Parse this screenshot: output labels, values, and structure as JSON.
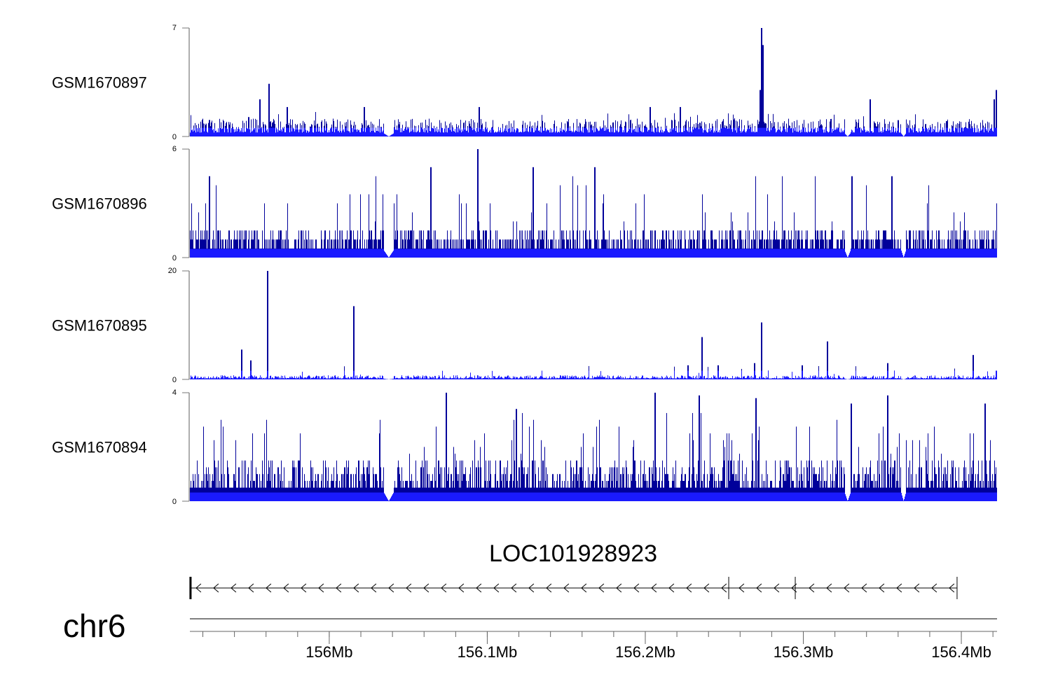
{
  "chart_data": {
    "type": "area",
    "xlim": [
      155.9118,
      156.4226
    ],
    "x_unit": "Mb",
    "chromosome": "chr6",
    "gene": {
      "name": "LOC101928923",
      "start": 155.9122,
      "end": 156.3973,
      "strand": "-",
      "exon_marks": [
        155.9122,
        156.2528,
        156.2949,
        156.3973
      ]
    },
    "axis": {
      "major_ticks": [
        156.0,
        156.1,
        156.2,
        156.3,
        156.4
      ],
      "tick_labels": [
        "156Mb",
        "156.1Mb",
        "156.2Mb",
        "156.3Mb",
        "156.4Mb"
      ],
      "minor_step": 0.02
    },
    "low_coverage_regions": [
      [
        156.0346,
        156.0408
      ],
      [
        156.3262,
        156.33
      ],
      [
        156.362,
        156.365
      ]
    ],
    "tracks": [
      {
        "name": "GSM1670897",
        "ylim": [
          0,
          7
        ],
        "ytick_labels": [
          "7",
          "0"
        ],
        "seed": 11,
        "base": 0.25,
        "noise": 0.9,
        "spike_rate": 0.05,
        "spike_max": 1.6,
        "peaks": [
          [
            156.2733,
            7.0
          ],
          [
            156.2742,
            5.9
          ],
          [
            156.2726,
            3.0
          ],
          [
            155.9558,
            2.4
          ],
          [
            155.9615,
            3.4
          ],
          [
            155.973,
            1.9
          ],
          [
            156.0947,
            1.9
          ],
          [
            156.3422,
            2.4
          ],
          [
            156.4221,
            3.0
          ],
          [
            156.4208,
            2.4
          ],
          [
            156.222,
            1.9
          ],
          [
            156.203,
            1.9
          ],
          [
            156.0218,
            1.9
          ]
        ]
      },
      {
        "name": "GSM1670896",
        "ylim": [
          0,
          6
        ],
        "ytick_labels": [
          "6",
          "0"
        ],
        "seed": 23,
        "base": 0.5,
        "noise": 1.2,
        "spike_rate": 0.1,
        "spike_max": 4.5,
        "quantum": 0.5,
        "peaks": [
          [
            156.0937,
            6.0
          ],
          [
            155.9032,
            5.0
          ],
          [
            155.924,
            4.5
          ],
          [
            156.064,
            5.0
          ],
          [
            156.129,
            5.0
          ],
          [
            156.168,
            5.0
          ],
          [
            156.3307,
            4.5
          ],
          [
            156.356,
            4.5
          ]
        ]
      },
      {
        "name": "GSM1670895",
        "ylim": [
          0,
          20
        ],
        "ytick_labels": [
          "20",
          "0"
        ],
        "seed": 37,
        "base": 0.15,
        "noise": 0.6,
        "spike_rate": 0.03,
        "spike_max": 2.5,
        "peaks": [
          [
            155.9608,
            20.0
          ],
          [
            156.0155,
            13.5
          ],
          [
            155.9443,
            5.5
          ],
          [
            155.9501,
            3.5
          ],
          [
            156.2359,
            7.8
          ],
          [
            156.2733,
            10.5
          ],
          [
            156.315,
            7.0
          ],
          [
            156.4071,
            4.5
          ],
          [
            156.3532,
            3.0
          ],
          [
            156.269,
            3.0
          ],
          [
            156.2461,
            2.6
          ],
          [
            156.227,
            2.6
          ],
          [
            156.299,
            2.6
          ],
          [
            156.4221,
            1.6
          ]
        ]
      },
      {
        "name": "GSM1670894",
        "ylim": [
          0,
          4
        ],
        "ytick_labels": [
          "4",
          "0"
        ],
        "seed": 51,
        "base": 0.4,
        "noise": 1.2,
        "spike_rate": 0.12,
        "spike_max": 3.2,
        "quantum": 0.25,
        "peaks": [
          [
            156.206,
            4.0
          ],
          [
            156.074,
            4.0
          ],
          [
            155.9018,
            3.9
          ],
          [
            156.353,
            3.9
          ],
          [
            156.2338,
            3.9
          ],
          [
            156.33,
            3.6
          ],
          [
            156.415,
            3.6
          ],
          [
            156.118,
            3.4
          ],
          [
            156.27,
            3.8
          ]
        ]
      }
    ]
  }
}
